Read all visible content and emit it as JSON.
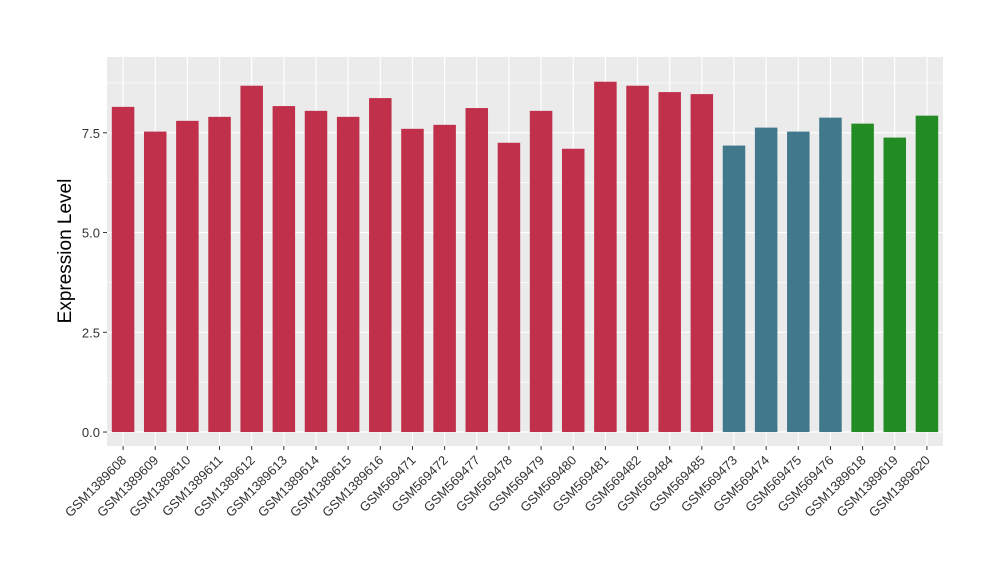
{
  "chart_data": {
    "type": "bar",
    "title": "",
    "xlabel": "",
    "ylabel": "Expression Level",
    "ylim": [
      -0.35,
      9.4
    ],
    "yticks": [
      0.0,
      2.5,
      5.0,
      7.5
    ],
    "ytick_labels": [
      "0.0",
      "2.5",
      "5.0",
      "7.5"
    ],
    "grid": true,
    "legend": "none",
    "panel_background": "#ebebeb",
    "grid_color": "#ffffff",
    "categories": [
      "GSM1389608",
      "GSM1389609",
      "GSM1389610",
      "GSM1389611",
      "GSM1389612",
      "GSM1389613",
      "GSM1389614",
      "GSM1389615",
      "GSM1389616",
      "GSM569471",
      "GSM569472",
      "GSM569477",
      "GSM569478",
      "GSM569479",
      "GSM569480",
      "GSM569481",
      "GSM569482",
      "GSM569484",
      "GSM569485",
      "GSM569473",
      "GSM569474",
      "GSM569475",
      "GSM569476",
      "GSM1389618",
      "GSM1389619",
      "GSM1389620"
    ],
    "values": [
      8.15,
      7.53,
      7.8,
      7.9,
      8.68,
      8.17,
      8.05,
      7.9,
      8.37,
      7.6,
      7.7,
      8.12,
      7.25,
      8.05,
      7.1,
      8.78,
      8.68,
      8.52,
      8.47,
      7.18,
      7.63,
      7.53,
      7.88,
      7.73,
      7.38,
      7.93
    ],
    "bar_colors": [
      "#c0304a",
      "#c0304a",
      "#c0304a",
      "#c0304a",
      "#c0304a",
      "#c0304a",
      "#c0304a",
      "#c0304a",
      "#c0304a",
      "#c0304a",
      "#c0304a",
      "#c0304a",
      "#c0304a",
      "#c0304a",
      "#c0304a",
      "#c0304a",
      "#c0304a",
      "#c0304a",
      "#c0304a",
      "#41788b",
      "#41788b",
      "#41788b",
      "#41788b",
      "#238b23",
      "#238b23",
      "#238b23"
    ]
  }
}
